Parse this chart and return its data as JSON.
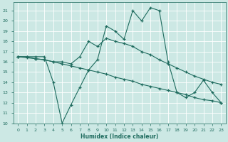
{
  "xlabel": "Humidex (Indice chaleur)",
  "bg_color": "#cce8e4",
  "line_color": "#1e6b5e",
  "grid_color": "#ffffff",
  "xlim": [
    -0.5,
    23.5
  ],
  "ylim": [
    10,
    21.8
  ],
  "xticks": [
    0,
    1,
    2,
    3,
    4,
    5,
    6,
    7,
    8,
    9,
    10,
    11,
    12,
    13,
    14,
    15,
    16,
    17,
    18,
    19,
    20,
    21,
    22,
    23
  ],
  "yticks": [
    10,
    11,
    12,
    13,
    14,
    15,
    16,
    17,
    18,
    19,
    20,
    21
  ],
  "line1_x": [
    0,
    1,
    2,
    3,
    4,
    5,
    6,
    7,
    8,
    9,
    10,
    11,
    12,
    13,
    14,
    15,
    16,
    17,
    18,
    19,
    20,
    21,
    22,
    23
  ],
  "line1_y": [
    16.5,
    16.5,
    16.5,
    16.5,
    14.0,
    10.0,
    11.8,
    13.5,
    15.2,
    16.2,
    19.5,
    19.0,
    18.2,
    21.0,
    20.0,
    21.3,
    21.0,
    16.0,
    13.0,
    12.5,
    13.0,
    14.2,
    13.0,
    12.0
  ],
  "line2_x": [
    0,
    1,
    2,
    3,
    4,
    5,
    6,
    7,
    8,
    9,
    10,
    11,
    12,
    13,
    14,
    15,
    16,
    17,
    18,
    19,
    20,
    21,
    22,
    23
  ],
  "line2_y": [
    16.5,
    16.4,
    16.3,
    16.2,
    16.0,
    15.8,
    15.6,
    15.4,
    15.2,
    15.0,
    14.8,
    14.5,
    14.3,
    14.1,
    13.8,
    13.6,
    13.4,
    13.2,
    13.0,
    12.8,
    12.5,
    12.3,
    12.2,
    12.0
  ],
  "line3_x": [
    0,
    1,
    2,
    3,
    4,
    5,
    6,
    7,
    8,
    9,
    10,
    11,
    12,
    13,
    14,
    15,
    16,
    17,
    18,
    19,
    20,
    21,
    22,
    23
  ],
  "line3_y": [
    16.5,
    16.5,
    16.3,
    16.2,
    16.0,
    16.0,
    15.8,
    16.5,
    18.0,
    17.5,
    18.3,
    18.0,
    17.8,
    17.5,
    17.0,
    16.7,
    16.2,
    15.8,
    15.4,
    15.0,
    14.6,
    14.3,
    14.0,
    13.8
  ]
}
